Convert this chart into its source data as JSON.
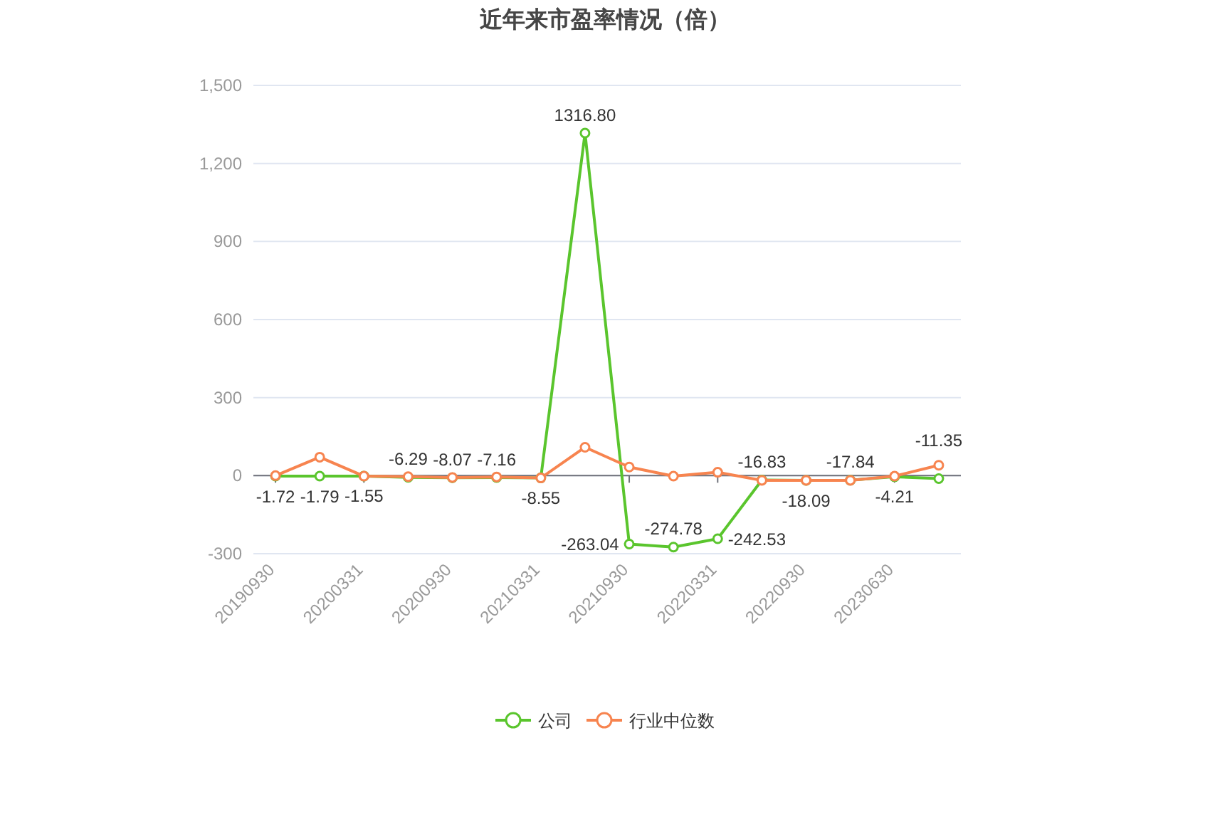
{
  "chart_data": {
    "type": "line",
    "title": "近年来市盈率情况（倍）",
    "categories": [
      "20190930",
      null,
      "20200331",
      null,
      "20200930",
      null,
      "20210331",
      null,
      "20210930",
      null,
      "20220331",
      null,
      "20220930",
      null,
      "20230630",
      null
    ],
    "series": [
      {
        "name": "公司",
        "color": "#5ac52d",
        "values": [
          -1.72,
          -1.79,
          -1.55,
          -6.29,
          -8.07,
          -7.16,
          -8.55,
          1316.8,
          -263.04,
          -274.78,
          -242.53,
          -16.83,
          -18.09,
          -17.84,
          -4.21,
          -11.35
        ],
        "value_labels": [
          "-1.72",
          "-1.79",
          "-1.55",
          "-6.29",
          "-8.07",
          "-7.16",
          "-8.55",
          "1316.80",
          "-263.04",
          "-274.78",
          "-242.53",
          "-16.83",
          "-18.09",
          "-17.84",
          "-4.21",
          "-11.35"
        ]
      },
      {
        "name": "行业中位数",
        "color": "#f7844f",
        "values": [
          0,
          71,
          -2,
          -4,
          -7,
          -5,
          -9,
          109,
          33,
          -2,
          13,
          -18,
          -18,
          -18,
          -2,
          40
        ]
      }
    ],
    "ylim": [
      -300,
      1500
    ],
    "yticks": [
      -300,
      0,
      300,
      600,
      900,
      {
        "value": 1200,
        "label": "1,200"
      },
      {
        "value": 1500,
        "label": "1,500"
      }
    ],
    "grid": "y",
    "legend": "bottom",
    "marker": "circle"
  }
}
